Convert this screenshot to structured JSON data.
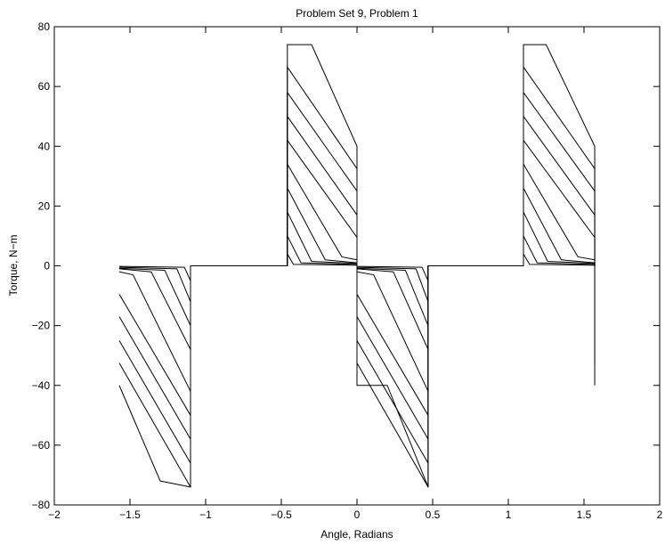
{
  "chart_data": {
    "type": "line",
    "title": "Problem Set 9, Problem 1",
    "xlabel": "Angle, Radians",
    "ylabel": "Torque, N−m",
    "xlim": [
      -2,
      2
    ],
    "ylim": [
      -80,
      80
    ],
    "xticks": [
      -2,
      -1.5,
      -1,
      -0.5,
      0,
      0.5,
      1,
      1.5,
      2
    ],
    "xtick_labels": [
      "−2",
      "−1.5",
      "−1",
      "−0.5",
      "0",
      "0.5",
      "1",
      "1.5",
      "2"
    ],
    "yticks": [
      -80,
      -60,
      -40,
      -20,
      0,
      20,
      40,
      60,
      80
    ],
    "ytick_labels": [
      "−80",
      "−60",
      "−40",
      "−20",
      "0",
      "20",
      "40",
      "60",
      "80"
    ],
    "grid": false,
    "line_color": "#000000",
    "series": [
      {
        "x": [
          -1.5708,
          -1.3,
          -1.1,
          -1.1,
          -0.46,
          -0.46,
          -0.3,
          0,
          0,
          0.2,
          0.47,
          0.47,
          1.1,
          1.1,
          1.25,
          1.5708,
          1.5708
        ],
        "y": [
          -40,
          -72,
          -74,
          0,
          0,
          74,
          74,
          40,
          -40,
          -40,
          -74,
          0,
          0,
          74,
          74,
          40,
          0
        ]
      },
      {
        "x": [
          -1.5708,
          -1.1,
          -1.1,
          -0.46,
          -0.46,
          0,
          0,
          0.47,
          0.47,
          1.1,
          1.1,
          1.5708,
          1.5708
        ],
        "y": [
          -32.5,
          -74,
          0,
          0,
          66.5,
          32.5,
          -32.5,
          -74,
          0,
          0,
          66.5,
          32.5,
          0
        ]
      },
      {
        "x": [
          -1.5708,
          -1.1,
          -1.1,
          -0.46,
          -0.46,
          0,
          0,
          0.47,
          0.47,
          1.1,
          1.1,
          1.5708,
          1.5708
        ],
        "y": [
          -25,
          -66,
          0,
          0,
          58,
          25,
          -25,
          -66,
          0,
          0,
          58,
          25,
          0
        ]
      },
      {
        "x": [
          -1.5708,
          -1.1,
          -1.1,
          -0.46,
          -0.46,
          0,
          0,
          0.47,
          0.47,
          1.1,
          1.1,
          1.5708,
          1.5708
        ],
        "y": [
          -17,
          -58,
          0,
          0,
          50,
          17,
          -17,
          -58,
          0,
          0,
          50,
          17,
          0
        ]
      },
      {
        "x": [
          -1.5708,
          -1.1,
          -1.1,
          -0.46,
          -0.46,
          0,
          0,
          0.47,
          0.47,
          1.1,
          1.1,
          1.5708,
          1.5708
        ],
        "y": [
          -9.5,
          -50,
          0,
          0,
          42,
          9.5,
          -9.5,
          -50,
          0,
          0,
          42,
          9.5,
          0
        ]
      },
      {
        "x": [
          -1.5708,
          -1.48,
          -1.1,
          -1.1,
          -0.46,
          -0.46,
          -0.1,
          0,
          0,
          0.11,
          0.47,
          0.47,
          1.1,
          1.1,
          1.46,
          1.5708,
          1.5708
        ],
        "y": [
          -2,
          -3,
          -42,
          0,
          0,
          34,
          3,
          2,
          -2,
          -3,
          -42,
          0,
          0,
          34,
          3,
          2,
          0
        ]
      },
      {
        "x": [
          -1.5708,
          -1.36,
          -1.1,
          -1.1,
          -0.46,
          -0.46,
          -0.21,
          0,
          0,
          0.24,
          0.47,
          0.47,
          1.1,
          1.1,
          1.35,
          1.5708,
          1.5708
        ],
        "y": [
          -1,
          -2,
          -28,
          0,
          0,
          26,
          2,
          1,
          -1,
          -2,
          -28,
          0,
          0,
          26,
          2,
          1,
          0
        ]
      },
      {
        "x": [
          -1.5708,
          -1.27,
          -1.1,
          -1.1,
          -0.46,
          -0.46,
          -0.3,
          0,
          0,
          0.32,
          0.47,
          0.47,
          1.1,
          1.1,
          1.26,
          1.5708,
          1.5708
        ],
        "y": [
          -0.8,
          -1.5,
          -20,
          0,
          0,
          18,
          1.5,
          0.8,
          -0.8,
          -1.5,
          -20,
          0,
          0,
          18,
          1.5,
          0.8,
          0
        ]
      },
      {
        "x": [
          -1.5708,
          -1.19,
          -1.1,
          -1.1,
          -0.46,
          -0.46,
          -0.37,
          0,
          0,
          0.39,
          0.47,
          0.47,
          1.1,
          1.1,
          1.19,
          1.5708,
          1.5708
        ],
        "y": [
          -0.5,
          -1,
          -12,
          0,
          0,
          10,
          1,
          0.5,
          -0.5,
          -1,
          -12,
          0,
          0,
          10,
          1,
          0.5,
          -40
        ]
      },
      {
        "x": [
          -1.5708,
          -1.14,
          -1.1,
          -1.1,
          -0.46,
          -0.46,
          -0.42,
          0,
          0,
          0.43,
          0.47,
          0.47,
          1.1,
          1.1,
          1.14,
          1.5708,
          1.5708
        ],
        "y": [
          -0.2,
          -0.5,
          -5,
          0,
          0,
          4,
          0.5,
          0.2,
          -0.2,
          -0.5,
          -5,
          0,
          0,
          4,
          0.5,
          0.2,
          -33
        ]
      }
    ]
  }
}
